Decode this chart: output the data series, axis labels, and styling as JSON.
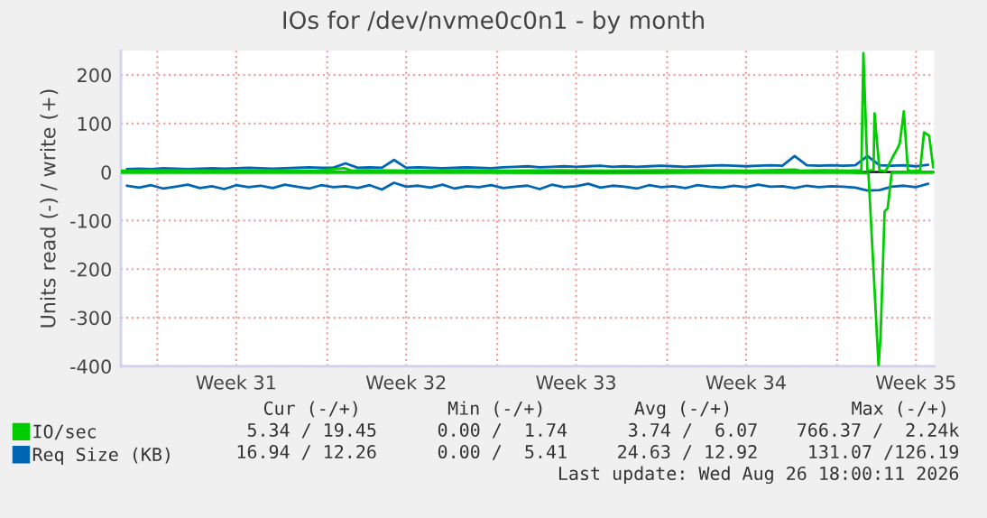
{
  "chart_data": {
    "type": "line",
    "title": "IOs for /dev/nvme0c0n1 - by month",
    "ylabel": "Units read (-) / write (+)",
    "xlim": [
      "2026-07-24T06:00",
      "2026-08-26T18:00"
    ],
    "xticks": [
      {
        "value": "2026-07-25T18:00",
        "label": null
      },
      {
        "value": "2026-07-29T00:00",
        "label": "Week 31"
      },
      {
        "value": "2026-08-01T18:00",
        "label": null
      },
      {
        "value": "2026-08-05T00:00",
        "label": "Week 32"
      },
      {
        "value": "2026-08-08T18:00",
        "label": null
      },
      {
        "value": "2026-08-12T00:00",
        "label": "Week 33"
      },
      {
        "value": "2026-08-15T18:00",
        "label": null
      },
      {
        "value": "2026-08-19T00:00",
        "label": "Week 34"
      },
      {
        "value": "2026-08-22T18:00",
        "label": null
      },
      {
        "value": "2026-08-26T00:00",
        "label": "Week 35"
      }
    ],
    "ylim": [
      -400,
      250
    ],
    "yticks": [
      -400,
      -300,
      -200,
      -100,
      0,
      100,
      200
    ],
    "grid": true,
    "legend": "bottom left",
    "ref_lines": [
      {
        "axis": "y",
        "value": 0,
        "color": "#000000"
      }
    ],
    "series": [
      {
        "name": "IO/sec",
        "color": "#00cc00",
        "x": [
          "2026-07-24T06:00",
          "2026-07-26T06:00",
          "2026-07-28T06:00",
          "2026-07-30T06:00",
          "2026-08-01T06:00",
          "2026-08-02T11:00",
          "2026-08-02T18:00",
          "2026-08-03T06:00",
          "2026-08-05T06:00",
          "2026-08-07T06:00",
          "2026-08-09T06:00",
          "2026-08-11T06:00",
          "2026-08-13T06:00",
          "2026-08-15T06:00",
          "2026-08-17T06:00",
          "2026-08-19T06:00",
          "2026-08-21T01:00",
          "2026-08-21T06:00",
          "2026-08-22T06:00",
          "2026-08-23T06:00",
          "2026-08-23T18:00",
          "2026-08-23T20:00",
          "2026-08-24T00:00",
          "2026-08-24T06:00",
          "2026-08-24T07:00",
          "2026-08-24T12:00",
          "2026-08-24T18:00",
          "2026-08-25T01:00",
          "2026-08-25T06:00",
          "2026-08-25T08:00",
          "2026-08-25T12:00",
          "2026-08-25T16:00",
          "2026-08-25T20:00",
          "2026-08-26T04:00",
          "2026-08-26T08:00",
          "2026-08-26T13:00",
          "2026-08-26T17:00"
        ],
        "values": [
          3,
          4,
          3,
          4,
          3,
          8,
          3,
          4,
          3,
          4,
          3,
          4,
          3,
          4,
          4,
          3,
          5,
          3,
          4,
          3,
          4,
          245,
          3,
          4,
          121,
          3,
          2,
          31,
          50,
          60,
          125,
          3,
          2,
          3,
          82,
          75,
          10
        ]
      },
      {
        "color": "#00cc00",
        "x": [
          "2026-07-24T06:00",
          "2026-07-29T06:00",
          "2026-08-03T06:00",
          "2026-08-08T06:00",
          "2026-08-13T06:00",
          "2026-08-18T06:00",
          "2026-08-23T06:00",
          "2026-08-24T01:00",
          "2026-08-24T11:00",
          "2026-08-24T13:00",
          "2026-08-24T17:00",
          "2026-08-24T20:00",
          "2026-08-25T00:00",
          "2026-08-25T06:00",
          "2026-08-26T06:00",
          "2026-08-26T17:00"
        ],
        "values": [
          -1,
          -1,
          -1,
          -1,
          -2,
          -1,
          -1,
          -2,
          -400,
          -337,
          -81,
          -75,
          -1,
          -1,
          -1,
          -1
        ]
      },
      {
        "name": "Req Size (KB)",
        "color": "#0066b3",
        "x": [
          "2026-07-24T12:00",
          "2026-07-25T00:00",
          "2026-07-25T12:00",
          "2026-07-26T00:00",
          "2026-07-26T12:00",
          "2026-07-27T00:00",
          "2026-07-27T12:00",
          "2026-07-28T00:00",
          "2026-07-28T12:00",
          "2026-07-29T00:00",
          "2026-07-29T12:00",
          "2026-07-30T00:00",
          "2026-07-30T12:00",
          "2026-07-31T00:00",
          "2026-07-31T12:00",
          "2026-08-01T00:00",
          "2026-08-01T12:00",
          "2026-08-02T00:00",
          "2026-08-02T12:00",
          "2026-08-03T00:00",
          "2026-08-03T12:00",
          "2026-08-04T00:00",
          "2026-08-04T12:00",
          "2026-08-05T00:00",
          "2026-08-05T12:00",
          "2026-08-06T00:00",
          "2026-08-06T12:00",
          "2026-08-07T00:00",
          "2026-08-07T12:00",
          "2026-08-08T00:00",
          "2026-08-08T12:00",
          "2026-08-09T00:00",
          "2026-08-09T12:00",
          "2026-08-10T00:00",
          "2026-08-10T12:00",
          "2026-08-11T00:00",
          "2026-08-11T12:00",
          "2026-08-12T00:00",
          "2026-08-12T12:00",
          "2026-08-13T00:00",
          "2026-08-13T12:00",
          "2026-08-14T00:00",
          "2026-08-14T12:00",
          "2026-08-15T00:00",
          "2026-08-15T12:00",
          "2026-08-16T00:00",
          "2026-08-16T12:00",
          "2026-08-17T00:00",
          "2026-08-17T12:00",
          "2026-08-18T00:00",
          "2026-08-18T12:00",
          "2026-08-19T00:00",
          "2026-08-19T12:00",
          "2026-08-20T00:00",
          "2026-08-20T12:00",
          "2026-08-21T00:00",
          "2026-08-21T12:00",
          "2026-08-22T00:00",
          "2026-08-22T12:00",
          "2026-08-23T00:00",
          "2026-08-23T12:00",
          "2026-08-24T00:00",
          "2026-08-24T12:00",
          "2026-08-25T00:00",
          "2026-08-25T12:00",
          "2026-08-26T00:00",
          "2026-08-26T12:00"
        ],
        "values": [
          6,
          7,
          6,
          8,
          7,
          6,
          7,
          8,
          7,
          8,
          9,
          8,
          7,
          8,
          9,
          10,
          9,
          9,
          18,
          9,
          10,
          9,
          25,
          9,
          10,
          9,
          8,
          9,
          10,
          9,
          8,
          10,
          11,
          12,
          10,
          11,
          12,
          11,
          12,
          13,
          11,
          12,
          11,
          12,
          13,
          12,
          11,
          12,
          13,
          14,
          13,
          12,
          13,
          14,
          13,
          33,
          14,
          13,
          14,
          13,
          14,
          33,
          14,
          13,
          14,
          12,
          15
        ]
      },
      {
        "color": "#0066b3",
        "x": [
          "2026-07-24T12:00",
          "2026-07-25T00:00",
          "2026-07-25T12:00",
          "2026-07-26T00:00",
          "2026-07-26T12:00",
          "2026-07-27T00:00",
          "2026-07-27T12:00",
          "2026-07-28T00:00",
          "2026-07-28T12:00",
          "2026-07-29T00:00",
          "2026-07-29T12:00",
          "2026-07-30T00:00",
          "2026-07-30T12:00",
          "2026-07-31T00:00",
          "2026-07-31T12:00",
          "2026-08-01T00:00",
          "2026-08-01T12:00",
          "2026-08-02T00:00",
          "2026-08-02T12:00",
          "2026-08-03T00:00",
          "2026-08-03T12:00",
          "2026-08-04T00:00",
          "2026-08-04T12:00",
          "2026-08-05T00:00",
          "2026-08-05T12:00",
          "2026-08-06T00:00",
          "2026-08-06T12:00",
          "2026-08-07T00:00",
          "2026-08-07T12:00",
          "2026-08-08T00:00",
          "2026-08-08T12:00",
          "2026-08-09T00:00",
          "2026-08-09T12:00",
          "2026-08-10T00:00",
          "2026-08-10T12:00",
          "2026-08-11T00:00",
          "2026-08-11T12:00",
          "2026-08-12T00:00",
          "2026-08-12T12:00",
          "2026-08-13T00:00",
          "2026-08-13T12:00",
          "2026-08-14T00:00",
          "2026-08-14T12:00",
          "2026-08-15T00:00",
          "2026-08-15T12:00",
          "2026-08-16T00:00",
          "2026-08-16T12:00",
          "2026-08-17T00:00",
          "2026-08-17T12:00",
          "2026-08-18T00:00",
          "2026-08-18T12:00",
          "2026-08-19T00:00",
          "2026-08-19T12:00",
          "2026-08-20T00:00",
          "2026-08-20T12:00",
          "2026-08-21T00:00",
          "2026-08-21T12:00",
          "2026-08-22T00:00",
          "2026-08-22T12:00",
          "2026-08-23T00:00",
          "2026-08-23T12:00",
          "2026-08-24T00:00",
          "2026-08-24T12:00",
          "2026-08-25T00:00",
          "2026-08-25T12:00",
          "2026-08-26T00:00",
          "2026-08-26T12:00"
        ],
        "values": [
          -28,
          -32,
          -27,
          -34,
          -30,
          -26,
          -33,
          -29,
          -35,
          -27,
          -31,
          -28,
          -33,
          -26,
          -30,
          -34,
          -27,
          -31,
          -29,
          -33,
          -27,
          -36,
          -22,
          -30,
          -28,
          -32,
          -26,
          -34,
          -29,
          -31,
          -27,
          -33,
          -30,
          -28,
          -35,
          -26,
          -31,
          -29,
          -24,
          -32,
          -28,
          -30,
          -34,
          -27,
          -31,
          -29,
          -33,
          -27,
          -30,
          -32,
          -28,
          -31,
          -26,
          -30,
          -29,
          -33,
          -28,
          -31,
          -29,
          -30,
          -32,
          -38,
          -37,
          -30,
          -28,
          -31,
          -24
        ]
      }
    ],
    "annotations": [
      "Cur (-/+)",
      "Min (-/+)",
      "Avg (-/+)",
      "Max (-/+)",
      "5.34 / 19.45",
      "0.00 /  1.74",
      "3.74 /  6.07",
      "766.37 /  2.24k",
      "16.94 / 12.26",
      "0.00 /  5.41",
      "24.63 / 12.92",
      "131.07 /126.19",
      "Last update: Wed Aug 26 18:00:11 2026"
    ]
  }
}
